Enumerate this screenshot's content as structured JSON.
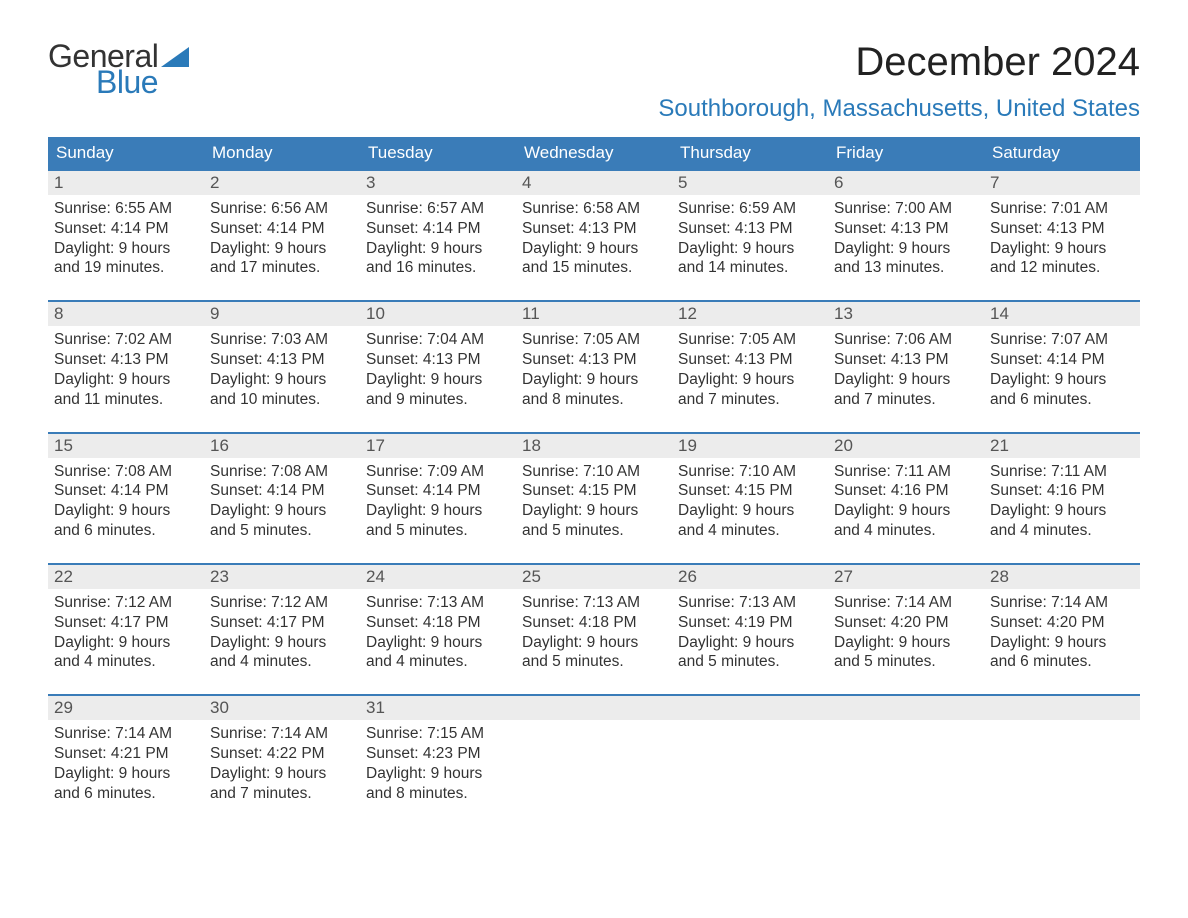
{
  "logo": {
    "part1": "General",
    "part2": "Blue"
  },
  "title": "December 2024",
  "location": "Southborough, Massachusetts, United States",
  "colors": {
    "header_bg": "#3a7cb8",
    "header_text": "#ffffff",
    "daynum_bg": "#ececec",
    "accent": "#2a7ab9",
    "body_text": "#333333",
    "page_bg": "#ffffff"
  },
  "fonts": {
    "title_size_pt": 30,
    "location_size_pt": 18,
    "weekday_size_pt": 13,
    "body_size_pt": 12
  },
  "weekdays": [
    "Sunday",
    "Monday",
    "Tuesday",
    "Wednesday",
    "Thursday",
    "Friday",
    "Saturday"
  ],
  "labels": {
    "sunrise_prefix": "Sunrise: ",
    "sunset_prefix": "Sunset: ",
    "daylight_prefix": "Daylight: ",
    "daylight_join": " and ",
    "daylight_suffix": "."
  },
  "days": [
    {
      "num": "1",
      "sunrise": "6:55 AM",
      "sunset": "4:14 PM",
      "dl_h": "9 hours",
      "dl_m": "19 minutes"
    },
    {
      "num": "2",
      "sunrise": "6:56 AM",
      "sunset": "4:14 PM",
      "dl_h": "9 hours",
      "dl_m": "17 minutes"
    },
    {
      "num": "3",
      "sunrise": "6:57 AM",
      "sunset": "4:14 PM",
      "dl_h": "9 hours",
      "dl_m": "16 minutes"
    },
    {
      "num": "4",
      "sunrise": "6:58 AM",
      "sunset": "4:13 PM",
      "dl_h": "9 hours",
      "dl_m": "15 minutes"
    },
    {
      "num": "5",
      "sunrise": "6:59 AM",
      "sunset": "4:13 PM",
      "dl_h": "9 hours",
      "dl_m": "14 minutes"
    },
    {
      "num": "6",
      "sunrise": "7:00 AM",
      "sunset": "4:13 PM",
      "dl_h": "9 hours",
      "dl_m": "13 minutes"
    },
    {
      "num": "7",
      "sunrise": "7:01 AM",
      "sunset": "4:13 PM",
      "dl_h": "9 hours",
      "dl_m": "12 minutes"
    },
    {
      "num": "8",
      "sunrise": "7:02 AM",
      "sunset": "4:13 PM",
      "dl_h": "9 hours",
      "dl_m": "11 minutes"
    },
    {
      "num": "9",
      "sunrise": "7:03 AM",
      "sunset": "4:13 PM",
      "dl_h": "9 hours",
      "dl_m": "10 minutes"
    },
    {
      "num": "10",
      "sunrise": "7:04 AM",
      "sunset": "4:13 PM",
      "dl_h": "9 hours",
      "dl_m": "9 minutes"
    },
    {
      "num": "11",
      "sunrise": "7:05 AM",
      "sunset": "4:13 PM",
      "dl_h": "9 hours",
      "dl_m": "8 minutes"
    },
    {
      "num": "12",
      "sunrise": "7:05 AM",
      "sunset": "4:13 PM",
      "dl_h": "9 hours",
      "dl_m": "7 minutes"
    },
    {
      "num": "13",
      "sunrise": "7:06 AM",
      "sunset": "4:13 PM",
      "dl_h": "9 hours",
      "dl_m": "7 minutes"
    },
    {
      "num": "14",
      "sunrise": "7:07 AM",
      "sunset": "4:14 PM",
      "dl_h": "9 hours",
      "dl_m": "6 minutes"
    },
    {
      "num": "15",
      "sunrise": "7:08 AM",
      "sunset": "4:14 PM",
      "dl_h": "9 hours",
      "dl_m": "6 minutes"
    },
    {
      "num": "16",
      "sunrise": "7:08 AM",
      "sunset": "4:14 PM",
      "dl_h": "9 hours",
      "dl_m": "5 minutes"
    },
    {
      "num": "17",
      "sunrise": "7:09 AM",
      "sunset": "4:14 PM",
      "dl_h": "9 hours",
      "dl_m": "5 minutes"
    },
    {
      "num": "18",
      "sunrise": "7:10 AM",
      "sunset": "4:15 PM",
      "dl_h": "9 hours",
      "dl_m": "5 minutes"
    },
    {
      "num": "19",
      "sunrise": "7:10 AM",
      "sunset": "4:15 PM",
      "dl_h": "9 hours",
      "dl_m": "4 minutes"
    },
    {
      "num": "20",
      "sunrise": "7:11 AM",
      "sunset": "4:16 PM",
      "dl_h": "9 hours",
      "dl_m": "4 minutes"
    },
    {
      "num": "21",
      "sunrise": "7:11 AM",
      "sunset": "4:16 PM",
      "dl_h": "9 hours",
      "dl_m": "4 minutes"
    },
    {
      "num": "22",
      "sunrise": "7:12 AM",
      "sunset": "4:17 PM",
      "dl_h": "9 hours",
      "dl_m": "4 minutes"
    },
    {
      "num": "23",
      "sunrise": "7:12 AM",
      "sunset": "4:17 PM",
      "dl_h": "9 hours",
      "dl_m": "4 minutes"
    },
    {
      "num": "24",
      "sunrise": "7:13 AM",
      "sunset": "4:18 PM",
      "dl_h": "9 hours",
      "dl_m": "4 minutes"
    },
    {
      "num": "25",
      "sunrise": "7:13 AM",
      "sunset": "4:18 PM",
      "dl_h": "9 hours",
      "dl_m": "5 minutes"
    },
    {
      "num": "26",
      "sunrise": "7:13 AM",
      "sunset": "4:19 PM",
      "dl_h": "9 hours",
      "dl_m": "5 minutes"
    },
    {
      "num": "27",
      "sunrise": "7:14 AM",
      "sunset": "4:20 PM",
      "dl_h": "9 hours",
      "dl_m": "5 minutes"
    },
    {
      "num": "28",
      "sunrise": "7:14 AM",
      "sunset": "4:20 PM",
      "dl_h": "9 hours",
      "dl_m": "6 minutes"
    },
    {
      "num": "29",
      "sunrise": "7:14 AM",
      "sunset": "4:21 PM",
      "dl_h": "9 hours",
      "dl_m": "6 minutes"
    },
    {
      "num": "30",
      "sunrise": "7:14 AM",
      "sunset": "4:22 PM",
      "dl_h": "9 hours",
      "dl_m": "7 minutes"
    },
    {
      "num": "31",
      "sunrise": "7:15 AM",
      "sunset": "4:23 PM",
      "dl_h": "9 hours",
      "dl_m": "8 minutes"
    }
  ],
  "calendar_layout": {
    "columns": 7,
    "weeks": 5,
    "first_day_column": 0,
    "trailing_empty_cells": 4
  }
}
